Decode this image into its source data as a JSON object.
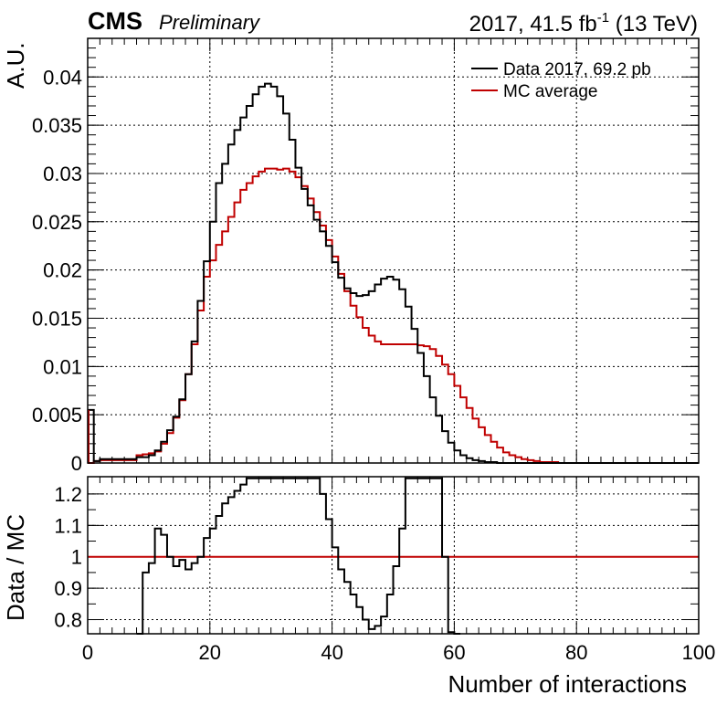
{
  "header": {
    "experiment": "CMS",
    "status": "Preliminary",
    "lumi_prefix": "2017, 41.5 fb",
    "lumi_exponent": "-1",
    "lumi_suffix": " (13 TeV)"
  },
  "chart_data": [
    {
      "type": "line",
      "panel": "main",
      "xlabel": "",
      "ylabel": "A.U.",
      "xlim": [
        0,
        100
      ],
      "ylim": [
        0,
        0.044
      ],
      "grid": true,
      "legend_position": "top-right",
      "x_ticks": [
        0,
        20,
        40,
        60,
        80,
        100
      ],
      "y_ticks": [
        0,
        0.005,
        0.01,
        0.015,
        0.02,
        0.025,
        0.03,
        0.035,
        0.04
      ],
      "y_tick_labels": [
        "0",
        "0.005",
        "0.01",
        "0.015",
        "0.02",
        "0.025",
        "0.03",
        "0.035",
        "0.04"
      ],
      "bin_width": 1,
      "series": [
        {
          "name": "Data 2017, 69.2 pb",
          "color": "#000000",
          "bin_edges_start": 0,
          "values": [
            0.0055,
            0.0002,
            0.0004,
            0.0004,
            0.0004,
            0.0004,
            0.0004,
            0.0004,
            0.0006,
            0.0006,
            0.0008,
            0.0013,
            0.0022,
            0.0034,
            0.0048,
            0.0066,
            0.0092,
            0.0126,
            0.0168,
            0.0209,
            0.025,
            0.029,
            0.031,
            0.033,
            0.0345,
            0.0358,
            0.037,
            0.0382,
            0.039,
            0.0393,
            0.039,
            0.038,
            0.0362,
            0.0335,
            0.0306,
            0.0284,
            0.0267,
            0.0252,
            0.024,
            0.0225,
            0.0208,
            0.0192,
            0.0181,
            0.0176,
            0.0173,
            0.0174,
            0.0178,
            0.0185,
            0.0191,
            0.0193,
            0.019,
            0.018,
            0.0162,
            0.0139,
            0.0114,
            0.009,
            0.0068,
            0.0049,
            0.0033,
            0.0021,
            0.0013,
            0.0008,
            0.0005,
            0.0003,
            0.0002,
            0.0001,
            0.0001,
            0.0,
            0.0,
            0.0,
            0.0,
            0.0,
            0.0,
            0.0,
            0.0,
            0.0,
            0.0,
            0.0,
            0.0,
            0.0,
            0.0,
            0.0,
            0.0,
            0.0,
            0.0,
            0.0,
            0.0,
            0.0,
            0.0,
            0.0,
            0.0,
            0.0,
            0.0,
            0.0,
            0.0,
            0.0,
            0.0,
            0.0,
            0.0,
            0.0
          ]
        },
        {
          "name": "MC average",
          "color": "#c00000",
          "bin_edges_start": 0,
          "values": [
            0.0,
            0.0002,
            0.0003,
            0.0003,
            0.0003,
            0.0003,
            0.0003,
            0.0003,
            0.0008,
            0.0009,
            0.001,
            0.0012,
            0.002,
            0.0031,
            0.0047,
            0.0065,
            0.0092,
            0.0123,
            0.0158,
            0.0193,
            0.021,
            0.0226,
            0.024,
            0.0255,
            0.027,
            0.0283,
            0.029,
            0.0297,
            0.0302,
            0.0305,
            0.0305,
            0.0304,
            0.0305,
            0.0302,
            0.0296,
            0.0287,
            0.0274,
            0.026,
            0.0246,
            0.0231,
            0.0214,
            0.0196,
            0.0178,
            0.0163,
            0.0151,
            0.014,
            0.0132,
            0.0126,
            0.0123,
            0.0123,
            0.0123,
            0.0123,
            0.0123,
            0.0123,
            0.0122,
            0.0121,
            0.0118,
            0.0111,
            0.0102,
            0.0092,
            0.008,
            0.0068,
            0.0057,
            0.0046,
            0.0037,
            0.0029,
            0.0022,
            0.0016,
            0.0011,
            0.0008,
            0.0006,
            0.0004,
            0.0003,
            0.0002,
            0.0001,
            0.0001,
            0.0001,
            0.0,
            0.0,
            0.0,
            0.0,
            0.0,
            0.0,
            0.0,
            0.0,
            0.0,
            0.0,
            0.0,
            0.0,
            0.0,
            0.0,
            0.0,
            0.0,
            0.0,
            0.0,
            0.0,
            0.0,
            0.0,
            0.0,
            0.0
          ]
        }
      ]
    },
    {
      "type": "line",
      "panel": "ratio",
      "xlabel": "Number of interactions",
      "ylabel": "Data / MC",
      "xlim": [
        0,
        100
      ],
      "ylim": [
        0.755,
        1.255
      ],
      "grid": true,
      "x_ticks": [
        0,
        20,
        40,
        60,
        80,
        100
      ],
      "x_tick_labels": [
        "0",
        "20",
        "40",
        "60",
        "80",
        "100"
      ],
      "y_ticks": [
        0.8,
        0.9,
        1.0,
        1.1,
        1.2
      ],
      "y_tick_labels": [
        "0.8",
        "0.9",
        "1",
        "1.1",
        "1.2"
      ],
      "reference_line": 1.0,
      "reference_color": "#c00000",
      "bin_width": 1,
      "series": [
        {
          "color": "#000000",
          "bin_edges_start": 8,
          "values": [
            0.75,
            0.95,
            0.98,
            1.09,
            1.07,
            1.0,
            0.97,
            0.99,
            0.96,
            0.98,
            1.0,
            1.06,
            1.09,
            1.13,
            1.17,
            1.19,
            1.21,
            1.23,
            1.25,
            1.25,
            1.25,
            1.25,
            1.25,
            1.25,
            1.25,
            1.25,
            1.25,
            1.25,
            1.25,
            1.25,
            1.2,
            1.12,
            1.03,
            0.96,
            0.92,
            0.88,
            0.84,
            0.8,
            0.77,
            0.78,
            0.81,
            0.88,
            0.97,
            1.09,
            1.25,
            1.25,
            1.25,
            1.25,
            1.25,
            1.25,
            1.0,
            0.76,
            0.75
          ]
        }
      ]
    }
  ]
}
